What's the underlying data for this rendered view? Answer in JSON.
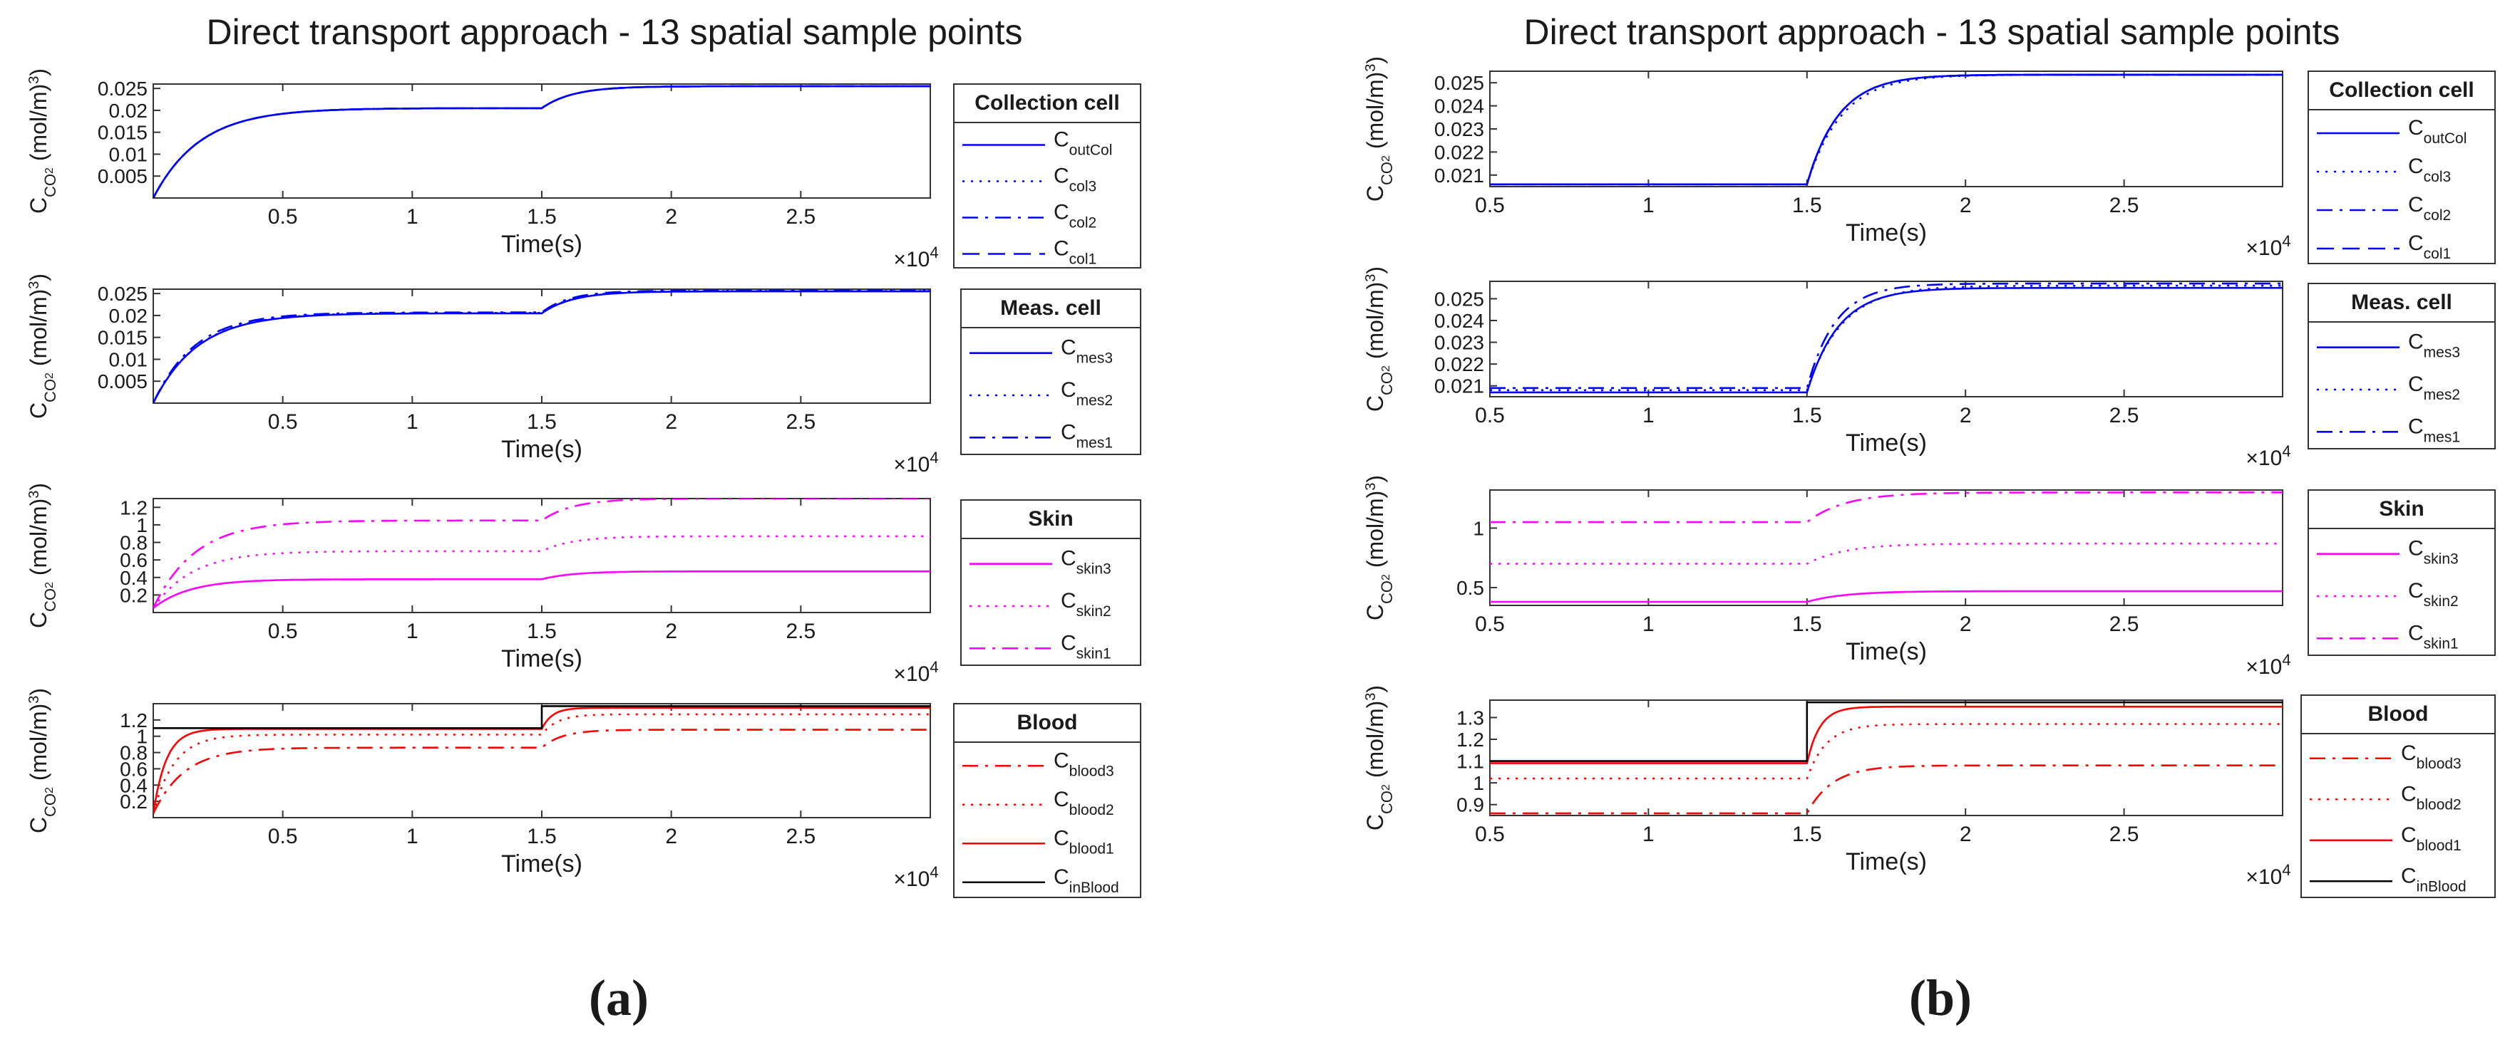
{
  "figure": {
    "panel_a_label": "(a)",
    "panel_b_label": "(b)",
    "panel_a_title": "Direct transport approach - 13 spatial sample points",
    "panel_b_title": "Direct transport approach - 13 spatial sample points"
  },
  "chart_data": [
    {
      "panel": "a",
      "type": "line",
      "title": "Direct transport approach - 13 spatial sample points",
      "xlabel": "Time(s)",
      "ylabel": "C_CO2 (mol/m^3)",
      "x_multiplier": "×10^4",
      "xlim": [
        0,
        3.0
      ],
      "ylim": [
        0,
        0.026
      ],
      "xticks": [
        "0.5",
        "1",
        "1.5",
        "2",
        "2.5"
      ],
      "yticks": [
        "0.005",
        "0.01",
        "0.015",
        "0.02",
        "0.025"
      ],
      "legend": {
        "title": "Collection cell",
        "entries": [
          "C_outCol",
          "C_col3",
          "C_col2",
          "C_col1"
        ]
      },
      "series": [
        {
          "name": "C_outCol",
          "color": "#0000ff",
          "style": "solid",
          "start": 0,
          "plateau1": 0.0205,
          "plateau2": 0.0255,
          "tau1": 0.18,
          "tau2": 0.12
        },
        {
          "name": "C_col3",
          "color": "#0000ff",
          "style": "dot",
          "start": 0,
          "plateau1": 0.0205,
          "plateau2": 0.0255,
          "tau1": 0.18,
          "tau2": 0.12
        },
        {
          "name": "C_col2",
          "color": "#0000ff",
          "style": "dashdot",
          "start": 0,
          "plateau1": 0.0205,
          "plateau2": 0.0255,
          "tau1": 0.18,
          "tau2": 0.12
        },
        {
          "name": "C_col1",
          "color": "#0000ff",
          "style": "dash",
          "start": 0,
          "plateau1": 0.0205,
          "plateau2": 0.0255,
          "tau1": 0.18,
          "tau2": 0.12
        }
      ]
    },
    {
      "panel": "a",
      "type": "line",
      "xlabel": "Time(s)",
      "ylabel": "C_CO2 (mol/m^3)",
      "x_multiplier": "×10^4",
      "xlim": [
        0,
        3.0
      ],
      "ylim": [
        0,
        0.026
      ],
      "xticks": [
        "0.5",
        "1",
        "1.5",
        "2",
        "2.5"
      ],
      "yticks": [
        "0.005",
        "0.01",
        "0.015",
        "0.02",
        "0.025"
      ],
      "legend": {
        "title": "Meas. cell",
        "entries": [
          "C_mes3",
          "C_mes2",
          "C_mes1"
        ]
      },
      "series": [
        {
          "name": "C_mes3",
          "color": "#0000ff",
          "style": "solid",
          "start": 0,
          "plateau1": 0.0205,
          "plateau2": 0.0255,
          "tau1": 0.17,
          "tau2": 0.12
        },
        {
          "name": "C_mes2",
          "color": "#0000ff",
          "style": "dot",
          "start": 0,
          "plateau1": 0.0206,
          "plateau2": 0.0256,
          "tau1": 0.17,
          "tau2": 0.12
        },
        {
          "name": "C_mes1",
          "color": "#0000ff",
          "style": "dashdot",
          "start": 0,
          "plateau1": 0.0207,
          "plateau2": 0.0257,
          "tau1": 0.16,
          "tau2": 0.11
        }
      ]
    },
    {
      "panel": "a",
      "type": "line",
      "xlabel": "Time(s)",
      "ylabel": "C_CO2 (mol/m^3)",
      "x_multiplier": "×10^4",
      "xlim": [
        0,
        3.0
      ],
      "ylim": [
        0,
        1.3
      ],
      "xticks": [
        "0.5",
        "1",
        "1.5",
        "2",
        "2.5"
      ],
      "yticks": [
        "0.2",
        "0.4",
        "0.6",
        "0.8",
        "1",
        "1.2"
      ],
      "legend": {
        "title": "Skin",
        "entries": [
          "C_skin3",
          "C_skin2",
          "C_skin1"
        ]
      },
      "series": [
        {
          "name": "C_skin3",
          "color": "#ff00ff",
          "style": "solid",
          "start": 0.05,
          "plateau1": 0.38,
          "plateau2": 0.47,
          "tau1": 0.14,
          "tau2": 0.12
        },
        {
          "name": "C_skin2",
          "color": "#ff00ff",
          "style": "dot",
          "start": 0.05,
          "plateau1": 0.7,
          "plateau2": 0.87,
          "tau1": 0.15,
          "tau2": 0.12
        },
        {
          "name": "C_skin1",
          "color": "#ff00ff",
          "style": "dashdot",
          "start": 0.05,
          "plateau1": 1.05,
          "plateau2": 1.3,
          "tau1": 0.16,
          "tau2": 0.12
        }
      ]
    },
    {
      "panel": "a",
      "type": "line",
      "xlabel": "Time(s)",
      "ylabel": "C_CO2 (mol/m^3)",
      "x_multiplier": "×10^4",
      "xlim": [
        0,
        3.0
      ],
      "ylim": [
        0,
        1.4
      ],
      "xticks": [
        "0.5",
        "1",
        "1.5",
        "2",
        "2.5"
      ],
      "yticks": [
        "0.2",
        "0.4",
        "0.6",
        "0.8",
        "1",
        "1.2"
      ],
      "legend": {
        "title": "Blood",
        "entries": [
          "C_blood3",
          "C_blood2",
          "C_blood1",
          "C_inBlood"
        ]
      },
      "series": [
        {
          "name": "C_blood3",
          "color": "#ff0000",
          "style": "dashdot",
          "start": 0.05,
          "plateau1": 0.86,
          "plateau2": 1.08,
          "tau1": 0.12,
          "tau2": 0.08
        },
        {
          "name": "C_blood2",
          "color": "#ff0000",
          "style": "dot",
          "start": 0.05,
          "plateau1": 1.02,
          "plateau2": 1.27,
          "tau1": 0.08,
          "tau2": 0.06
        },
        {
          "name": "C_blood1",
          "color": "#ff0000",
          "style": "solid",
          "start": 0.05,
          "plateau1": 1.09,
          "plateau2": 1.35,
          "tau1": 0.05,
          "tau2": 0.04
        },
        {
          "name": "C_inBlood",
          "color": "#000000",
          "style": "solid",
          "step": true,
          "plateau1": 1.1,
          "plateau2": 1.37
        }
      ]
    },
    {
      "panel": "b",
      "type": "line",
      "title": "Direct transport approach - 13 spatial sample points",
      "xlabel": "Time(s)",
      "ylabel": "C_CO2 (mol/m^3)",
      "x_multiplier": "×10^4",
      "xlim": [
        0.5,
        3.0
      ],
      "ylim": [
        0.0205,
        0.0255
      ],
      "xticks": [
        "0.5",
        "1",
        "1.5",
        "2",
        "2.5"
      ],
      "yticks": [
        "0.021",
        "0.022",
        "0.023",
        "0.024",
        "0.025"
      ],
      "legend": {
        "title": "Collection cell",
        "entries": [
          "C_outCol",
          "C_col3",
          "C_col2",
          "C_col1"
        ]
      },
      "series": [
        {
          "name": "C_outCol",
          "color": "#0000ff",
          "style": "solid",
          "start": 0.0206,
          "plateau1": 0.0206,
          "plateau2": 0.02535,
          "tau1": 0.1,
          "tau2": 0.1
        },
        {
          "name": "C_col3",
          "color": "#0000ff",
          "style": "dot",
          "start": 0.0206,
          "plateau1": 0.0206,
          "plateau2": 0.02535,
          "tau1": 0.1,
          "tau2": 0.11
        },
        {
          "name": "C_col2",
          "color": "#0000ff",
          "style": "dashdot",
          "start": 0.0206,
          "plateau1": 0.0206,
          "plateau2": 0.02535,
          "tau1": 0.1,
          "tau2": 0.1
        },
        {
          "name": "C_col1",
          "color": "#0000ff",
          "style": "dash",
          "start": 0.0206,
          "plateau1": 0.0206,
          "plateau2": 0.02535,
          "tau1": 0.1,
          "tau2": 0.1
        }
      ]
    },
    {
      "panel": "b",
      "type": "line",
      "xlabel": "Time(s)",
      "ylabel": "C_CO2 (mol/m^3)",
      "x_multiplier": "×10^4",
      "xlim": [
        0.5,
        3.0
      ],
      "ylim": [
        0.0205,
        0.0258
      ],
      "xticks": [
        "0.5",
        "1",
        "1.5",
        "2",
        "2.5"
      ],
      "yticks": [
        "0.021",
        "0.022",
        "0.023",
        "0.024",
        "0.025"
      ],
      "legend": {
        "title": "Meas. cell",
        "entries": [
          "C_mes3",
          "C_mes2",
          "C_mes1"
        ]
      },
      "series": [
        {
          "name": "C_mes3",
          "color": "#0000ff",
          "style": "solid",
          "start": 0.0207,
          "plateau1": 0.0207,
          "plateau2": 0.0255,
          "tau1": 0.1,
          "tau2": 0.1
        },
        {
          "name": "C_mes2",
          "color": "#0000ff",
          "style": "dot",
          "start": 0.0208,
          "plateau1": 0.0208,
          "plateau2": 0.0256,
          "tau1": 0.1,
          "tau2": 0.11
        },
        {
          "name": "C_mes1",
          "color": "#0000ff",
          "style": "dashdot",
          "start": 0.0209,
          "plateau1": 0.0209,
          "plateau2": 0.0257,
          "tau1": 0.1,
          "tau2": 0.09
        }
      ]
    },
    {
      "panel": "b",
      "type": "line",
      "xlabel": "Time(s)",
      "ylabel": "C_CO2 (mol/m^3)",
      "x_multiplier": "×10^4",
      "xlim": [
        0.5,
        3.0
      ],
      "ylim": [
        0.35,
        1.32
      ],
      "xticks": [
        "0.5",
        "1",
        "1.5",
        "2",
        "2.5"
      ],
      "yticks": [
        "0.5",
        "1"
      ],
      "legend": {
        "title": "Skin",
        "entries": [
          "C_skin3",
          "C_skin2",
          "C_skin1"
        ]
      },
      "series": [
        {
          "name": "C_skin3",
          "color": "#ff00ff",
          "style": "solid",
          "start": 0.38,
          "plateau1": 0.38,
          "plateau2": 0.47,
          "tau1": 0.1,
          "tau2": 0.12
        },
        {
          "name": "C_skin2",
          "color": "#ff00ff",
          "style": "dot",
          "start": 0.7,
          "plateau1": 0.7,
          "plateau2": 0.87,
          "tau1": 0.1,
          "tau2": 0.12
        },
        {
          "name": "C_skin1",
          "color": "#ff00ff",
          "style": "dashdot",
          "start": 1.05,
          "plateau1": 1.05,
          "plateau2": 1.3,
          "tau1": 0.1,
          "tau2": 0.12
        }
      ]
    },
    {
      "panel": "b",
      "type": "line",
      "xlabel": "Time(s)",
      "ylabel": "C_CO2 (mol/m^3)",
      "x_multiplier": "×10^4",
      "xlim": [
        0.5,
        3.0
      ],
      "ylim": [
        0.85,
        1.38
      ],
      "xticks": [
        "0.5",
        "1",
        "1.5",
        "2",
        "2.5"
      ],
      "yticks": [
        "0.9",
        "1",
        "1.1",
        "1.2",
        "1.3"
      ],
      "legend": {
        "title": "Blood",
        "entries": [
          "C_blood3",
          "C_blood2",
          "C_blood1",
          "C_inBlood"
        ]
      },
      "series": [
        {
          "name": "C_blood3",
          "color": "#ff0000",
          "style": "dashdot",
          "start": 0.86,
          "plateau1": 0.86,
          "plateau2": 1.08,
          "tau1": 0.1,
          "tau2": 0.08
        },
        {
          "name": "C_blood2",
          "color": "#ff0000",
          "style": "dot",
          "start": 1.02,
          "plateau1": 1.02,
          "plateau2": 1.27,
          "tau1": 0.1,
          "tau2": 0.06
        },
        {
          "name": "C_blood1",
          "color": "#ff0000",
          "style": "solid",
          "start": 1.09,
          "plateau1": 1.09,
          "plateau2": 1.35,
          "tau1": 0.1,
          "tau2": 0.04
        },
        {
          "name": "C_inBlood",
          "color": "#000000",
          "style": "solid",
          "step": true,
          "plateau1": 1.1,
          "plateau2": 1.37
        }
      ]
    }
  ]
}
